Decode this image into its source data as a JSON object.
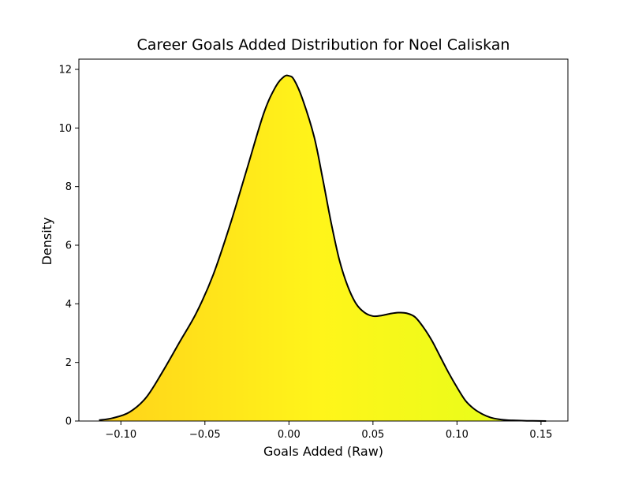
{
  "chart_data": {
    "type": "area",
    "title": "Career Goals Added Distribution for Noel Caliskan",
    "xlabel": "Goals Added (Raw)",
    "ylabel": "Density",
    "xlim": [
      -0.125,
      0.166
    ],
    "ylim": [
      0,
      12.35
    ],
    "xticks": [
      -0.1,
      -0.05,
      0.0,
      0.05,
      0.1,
      0.15
    ],
    "xtick_labels": [
      "−0.10",
      "−0.05",
      "0.00",
      "0.05",
      "0.10",
      "0.15"
    ],
    "yticks": [
      0,
      2,
      4,
      6,
      8,
      10,
      12
    ],
    "ytick_labels": [
      "0",
      "2",
      "4",
      "6",
      "8",
      "10",
      "12"
    ],
    "grid": false,
    "legend": false,
    "line_color": "#000000",
    "fill_gradient": [
      "#ffd21a",
      "#fff51a",
      "#e3ff1a"
    ],
    "series": [
      {
        "x": [
          -0.113,
          -0.105,
          -0.095,
          -0.085,
          -0.075,
          -0.065,
          -0.055,
          -0.045,
          -0.035,
          -0.025,
          -0.015,
          -0.008,
          -0.003,
          0.0,
          0.003,
          0.008,
          0.015,
          0.02,
          0.025,
          0.03,
          0.035,
          0.04,
          0.045,
          0.05,
          0.055,
          0.06,
          0.065,
          0.07,
          0.075,
          0.08,
          0.085,
          0.09,
          0.095,
          0.1,
          0.105,
          0.11,
          0.115,
          0.12,
          0.125,
          0.13,
          0.135,
          0.14,
          0.145,
          0.153
        ],
        "y": [
          0.03,
          0.1,
          0.3,
          0.8,
          1.7,
          2.7,
          3.7,
          5.0,
          6.7,
          8.6,
          10.5,
          11.4,
          11.75,
          11.78,
          11.65,
          11.0,
          9.7,
          8.3,
          6.8,
          5.5,
          4.6,
          4.0,
          3.7,
          3.58,
          3.6,
          3.66,
          3.7,
          3.68,
          3.55,
          3.2,
          2.75,
          2.2,
          1.65,
          1.15,
          0.7,
          0.42,
          0.24,
          0.12,
          0.06,
          0.03,
          0.02,
          0.01,
          0.005,
          0.0
        ]
      }
    ]
  }
}
